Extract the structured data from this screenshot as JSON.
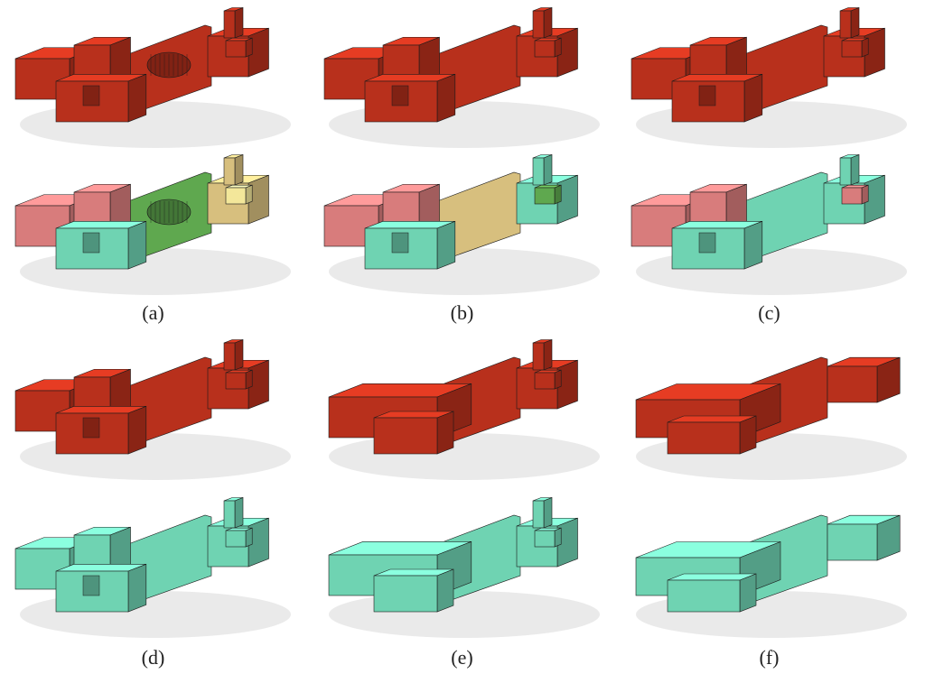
{
  "figure": {
    "captions": [
      "(a)",
      "(b)",
      "(c)",
      "(d)",
      "(e)",
      "(f)"
    ],
    "colors": {
      "red": "#b8301c",
      "cyan": "#6fd3b2",
      "green": "#5fa84f",
      "tan": "#d7bf7e",
      "pink": "#d87c7c",
      "yellow": "#f3e79a",
      "shadow": "#e8e8e8"
    },
    "panels": [
      {
        "id": "a-top",
        "style": "red",
        "detail": "full",
        "grille": true
      },
      {
        "id": "b-top",
        "style": "red",
        "detail": "full",
        "grille": false
      },
      {
        "id": "c-top",
        "style": "red",
        "detail": "full",
        "grille": false
      },
      {
        "id": "a-seg",
        "style": "segmented",
        "detail": "full",
        "grille": true
      },
      {
        "id": "b-seg",
        "style": "segmented",
        "detail": "full",
        "grille": false
      },
      {
        "id": "c-seg",
        "style": "segmented",
        "detail": "full",
        "grille": false
      },
      {
        "id": "d-top",
        "style": "red",
        "detail": "full",
        "grille": false
      },
      {
        "id": "e-top",
        "style": "red",
        "detail": "medium",
        "grille": false
      },
      {
        "id": "f-top",
        "style": "red",
        "detail": "low",
        "grille": false
      },
      {
        "id": "d-bot",
        "style": "cyan",
        "detail": "full",
        "grille": false
      },
      {
        "id": "e-bot",
        "style": "cyan",
        "detail": "medium",
        "grille": false
      },
      {
        "id": "f-bot",
        "style": "cyan",
        "detail": "low",
        "grille": false
      }
    ]
  }
}
